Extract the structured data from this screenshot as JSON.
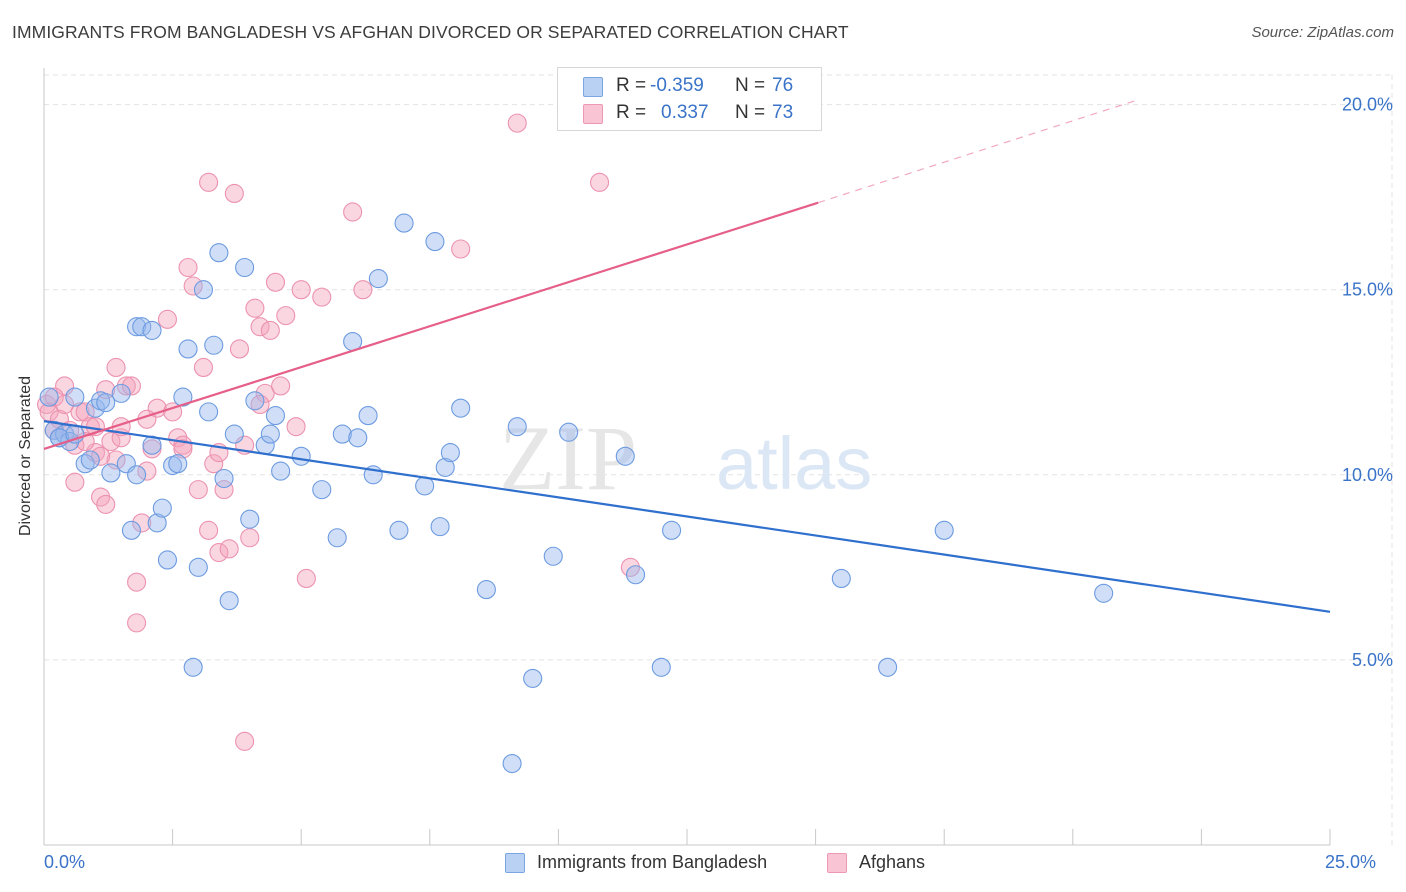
{
  "title": "IMMIGRANTS FROM BANGLADESH VS AFGHAN DIVORCED OR SEPARATED CORRELATION CHART",
  "source": "Source: ZipAtlas.com",
  "watermark": {
    "zip": "ZIP",
    "atlas": "atlas"
  },
  "legend_top": {
    "rows": [
      {
        "r_label": "R =",
        "r_value": "-0.359",
        "n_label": "N =",
        "n_value": "76"
      },
      {
        "r_label": "R =",
        "r_value": "0.337",
        "n_label": "N =",
        "n_value": "73"
      }
    ]
  },
  "chart_data": {
    "type": "scatter",
    "title": "IMMIGRANTS FROM BANGLADESH VS AFGHAN DIVORCED OR SEPARATED CORRELATION CHART",
    "ylabel": "Divorced or Separated",
    "xlabel": "",
    "xlim": [
      0,
      25
    ],
    "ylim": [
      0,
      20.8
    ],
    "x_tick_labels": [
      "0.0%",
      "25.0%"
    ],
    "y_ticks": [
      5,
      10,
      15,
      20
    ],
    "y_tick_labels": [
      "5.0%",
      "10.0%",
      "15.0%",
      "20.0%"
    ],
    "grid": true,
    "legend_position": "bottom",
    "series": [
      {
        "name": "Immigrants from Bangladesh",
        "color": "#8ab4ec",
        "line_color": "#2f6fcd",
        "trend": {
          "x0": 0,
          "y0": 11.45,
          "x1": 25,
          "y1": 6.3
        },
        "points": [
          [
            0.1,
            12.1
          ],
          [
            0.2,
            11.2
          ],
          [
            0.3,
            11.0
          ],
          [
            0.4,
            11.1
          ],
          [
            0.5,
            10.9
          ],
          [
            0.6,
            12.1
          ],
          [
            0.8,
            10.3
          ],
          [
            0.9,
            10.4
          ],
          [
            1.0,
            11.8
          ],
          [
            1.1,
            12.0
          ],
          [
            1.2,
            11.95
          ],
          [
            1.3,
            10.05
          ],
          [
            1.5,
            12.2
          ],
          [
            1.6,
            10.3
          ],
          [
            1.7,
            8.5
          ],
          [
            1.8,
            10.0
          ],
          [
            1.8,
            14.0
          ],
          [
            1.9,
            14.0
          ],
          [
            2.1,
            13.9
          ],
          [
            2.1,
            10.8
          ],
          [
            2.2,
            8.7
          ],
          [
            2.3,
            9.1
          ],
          [
            2.4,
            7.7
          ],
          [
            2.5,
            10.25
          ],
          [
            2.6,
            10.3
          ],
          [
            2.7,
            12.1
          ],
          [
            2.8,
            13.4
          ],
          [
            2.9,
            4.8
          ],
          [
            3.0,
            7.5
          ],
          [
            3.1,
            15.0
          ],
          [
            3.2,
            11.7
          ],
          [
            3.3,
            13.5
          ],
          [
            3.4,
            16.0
          ],
          [
            3.5,
            9.9
          ],
          [
            3.6,
            6.6
          ],
          [
            3.7,
            11.1
          ],
          [
            3.9,
            15.6
          ],
          [
            4.0,
            8.8
          ],
          [
            4.1,
            12.0
          ],
          [
            4.3,
            10.8
          ],
          [
            4.4,
            11.1
          ],
          [
            4.5,
            11.6
          ],
          [
            4.6,
            10.1
          ],
          [
            5.0,
            10.5
          ],
          [
            5.4,
            9.6
          ],
          [
            5.7,
            8.3
          ],
          [
            5.8,
            11.1
          ],
          [
            6.0,
            13.6
          ],
          [
            6.1,
            11.0
          ],
          [
            6.3,
            11.6
          ],
          [
            6.4,
            10.0
          ],
          [
            6.5,
            15.3
          ],
          [
            6.9,
            8.5
          ],
          [
            7.0,
            16.8
          ],
          [
            7.4,
            9.7
          ],
          [
            7.6,
            16.3
          ],
          [
            7.7,
            8.6
          ],
          [
            7.8,
            10.2
          ],
          [
            7.9,
            10.6
          ],
          [
            8.1,
            11.8
          ],
          [
            8.6,
            6.9
          ],
          [
            9.1,
            2.2
          ],
          [
            9.2,
            11.3
          ],
          [
            9.5,
            4.5
          ],
          [
            9.9,
            7.8
          ],
          [
            10.2,
            11.15
          ],
          [
            11.3,
            10.5
          ],
          [
            11.5,
            7.3
          ],
          [
            12.0,
            4.8
          ],
          [
            12.2,
            8.5
          ],
          [
            15.5,
            7.2
          ],
          [
            16.4,
            4.8
          ],
          [
            17.5,
            8.5
          ],
          [
            20.6,
            6.8
          ],
          [
            0.3,
            11.0
          ],
          [
            0.6,
            11.1
          ]
        ]
      },
      {
        "name": "Afghans",
        "color": "#f4a3bd",
        "line_color": "#e55f88",
        "trend": {
          "x0": 0,
          "y0": 10.7,
          "x1": 15.05,
          "y1": 17.35
        },
        "trend_dashed": {
          "x0": 15.05,
          "y0": 17.35,
          "x1": 21.2,
          "y1": 20.1
        },
        "points": [
          [
            0.05,
            11.9
          ],
          [
            0.1,
            11.7
          ],
          [
            0.2,
            11.2
          ],
          [
            0.3,
            11.5
          ],
          [
            0.4,
            12.4
          ],
          [
            0.5,
            11.2
          ],
          [
            0.6,
            10.8
          ],
          [
            0.6,
            9.8
          ],
          [
            0.7,
            11.7
          ],
          [
            0.8,
            11.7
          ],
          [
            0.9,
            11.3
          ],
          [
            1.0,
            11.3
          ],
          [
            1.0,
            10.6
          ],
          [
            1.1,
            9.4
          ],
          [
            1.2,
            9.2
          ],
          [
            1.3,
            10.9
          ],
          [
            1.4,
            12.9
          ],
          [
            1.4,
            10.4
          ],
          [
            1.5,
            11.0
          ],
          [
            1.6,
            12.4
          ],
          [
            1.7,
            12.4
          ],
          [
            1.8,
            7.1
          ],
          [
            1.8,
            6.0
          ],
          [
            1.9,
            8.7
          ],
          [
            2.0,
            10.1
          ],
          [
            2.1,
            10.7
          ],
          [
            2.2,
            11.8
          ],
          [
            2.4,
            14.2
          ],
          [
            2.5,
            11.7
          ],
          [
            2.6,
            11.0
          ],
          [
            2.7,
            10.8
          ],
          [
            2.8,
            15.6
          ],
          [
            2.9,
            15.1
          ],
          [
            3.0,
            9.6
          ],
          [
            3.1,
            12.9
          ],
          [
            3.2,
            8.5
          ],
          [
            3.2,
            17.9
          ],
          [
            3.3,
            10.3
          ],
          [
            3.4,
            10.6
          ],
          [
            3.4,
            7.9
          ],
          [
            3.5,
            9.6
          ],
          [
            3.6,
            8.0
          ],
          [
            3.7,
            17.6
          ],
          [
            3.8,
            13.4
          ],
          [
            3.9,
            2.8
          ],
          [
            4.0,
            8.3
          ],
          [
            4.1,
            14.5
          ],
          [
            4.2,
            14.0
          ],
          [
            4.3,
            12.2
          ],
          [
            4.4,
            13.9
          ],
          [
            4.5,
            15.2
          ],
          [
            4.6,
            12.4
          ],
          [
            4.7,
            14.3
          ],
          [
            4.9,
            11.3
          ],
          [
            5.0,
            15.0
          ],
          [
            5.1,
            7.2
          ],
          [
            5.4,
            14.8
          ],
          [
            6.0,
            17.1
          ],
          [
            6.2,
            15.0
          ],
          [
            8.1,
            16.1
          ],
          [
            9.2,
            19.5
          ],
          [
            10.8,
            17.9
          ],
          [
            11.4,
            7.5
          ],
          [
            0.2,
            12.1
          ],
          [
            0.8,
            10.9
          ],
          [
            1.2,
            12.3
          ],
          [
            1.5,
            11.3
          ],
          [
            2.0,
            11.5
          ],
          [
            2.7,
            10.7
          ],
          [
            3.9,
            10.8
          ],
          [
            4.2,
            11.9
          ],
          [
            0.4,
            11.9
          ],
          [
            1.1,
            10.5
          ]
        ]
      }
    ]
  }
}
